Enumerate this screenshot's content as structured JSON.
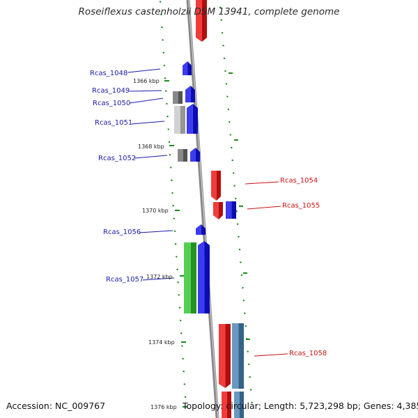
{
  "title": "Roseiflexus castenholzii DSM 13941, complete genome",
  "accession": "Accession: NC_009767",
  "footer_info": "Topology: circular; Length: 5,723,298 bp; Genes: 4,385",
  "colors": {
    "backbone": "#8a8a8a",
    "tick": "#1c8a1c",
    "forward_label": "#1a1aa6",
    "reverse_label": "#cc1111",
    "blue": "#1010ee",
    "red": "#ee1111",
    "gray": "#6e6e6e",
    "lightgray": "#c8c8c8",
    "green": "#2ec42e",
    "steelblue": "#4682b4"
  },
  "kbp_labels": [
    "1366 kbp",
    "1368 kbp",
    "1370 kbp",
    "1372 kbp",
    "1374 kbp",
    "1376 kbp"
  ],
  "gene_labels": [
    "Rcas_1048",
    "Rcas_1049",
    "Rcas_1050",
    "Rcas_1051",
    "Rcas_1052",
    "Rcas_1054",
    "Rcas_1055",
    "Rcas_1056",
    "Rcas_1057",
    "Rcas_1058"
  ]
}
